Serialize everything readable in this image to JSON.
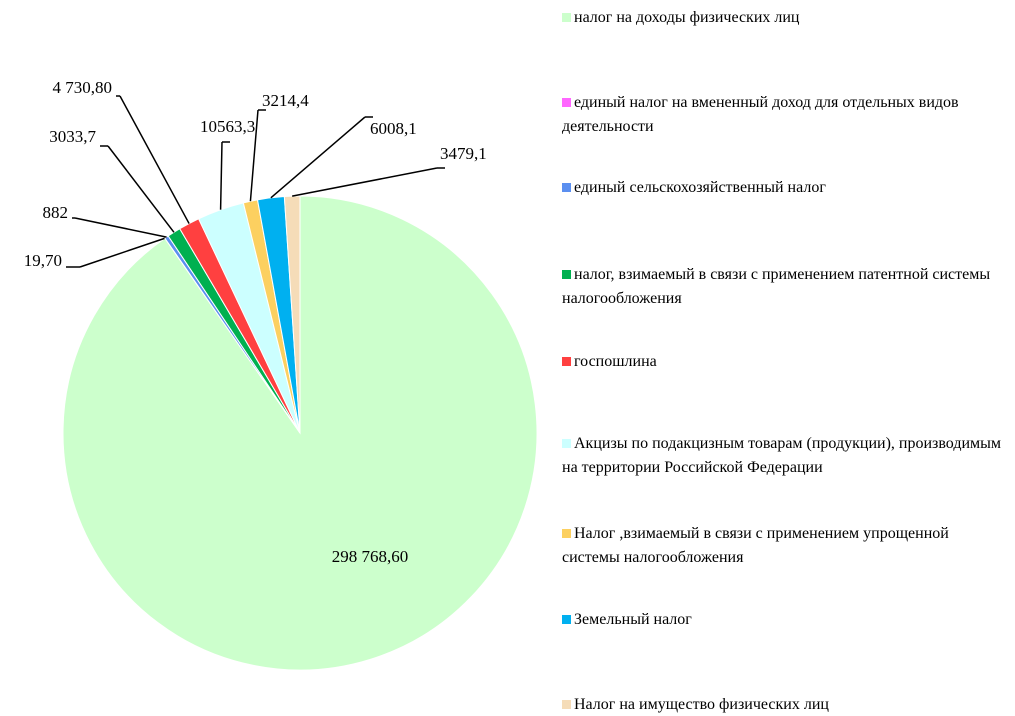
{
  "chart_data": {
    "type": "pie",
    "categories": [
      "налог на доходы физических лиц",
      "единый налог на вмененный доход для отдельных видов деятельности",
      "единый сельскохозяйственный налог",
      "налог, взимаемый в связи с применением патентной системы налогообложения",
      "госпошлина",
      "Акцизы по подакцизным товарам (продукции), производимым на территории Российской Федерации",
      "Налог ,взимаемый в связи с применением упрощенной системы налогообложения",
      "Земельный налог",
      "Налог на имущество физических лиц"
    ],
    "values": [
      298768.6,
      19.7,
      882,
      3033.7,
      4730.8,
      10563.3,
      3214.4,
      6008.1,
      3479.1
    ],
    "value_labels": [
      "298 768,60",
      "19,70",
      "882",
      "3033,7",
      "4 730,80",
      "10563,3",
      "3214,4",
      "6008,1",
      "3479,1"
    ],
    "colors": [
      "#ccffcc",
      "#ff66ff",
      "#5b8ff0",
      "#00b050",
      "#ff4040",
      "#ccffff",
      "#fcd060",
      "#00b0f0",
      "#f5dcb8"
    ]
  }
}
